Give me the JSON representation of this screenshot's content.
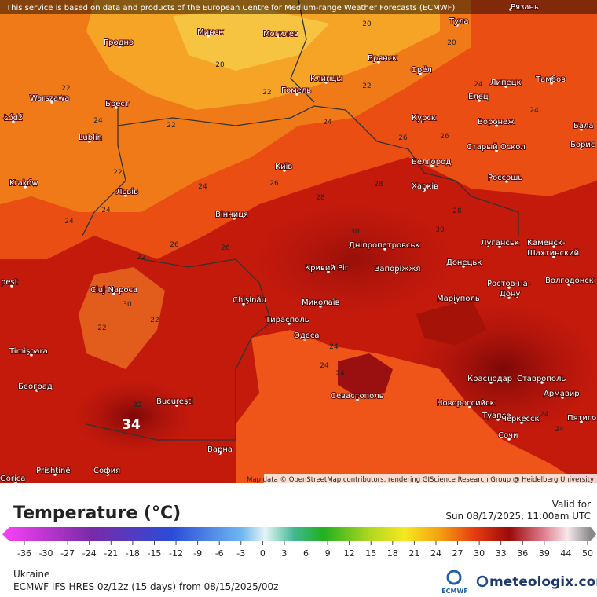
{
  "banner": "This service is based on data and products of the European Centre for Medium-range Weather Forecasts (ECMWF)",
  "attribution": "Map data © OpenStreetMap contributors, rendering GIScience Research Group @ Heidelberg University",
  "cities": [
    "Рязань",
    "Тула",
    "Минск",
    "Могилев",
    "Гродно",
    "Брянск",
    "Орёл",
    "Клинцы",
    "Гомель",
    "Липецк",
    "Тамбов",
    "Елец",
    "Warszawa",
    "Брест",
    "Łódź",
    "Lublin",
    "Курск",
    "Воронеж",
    "Старый Оскол",
    "Бала",
    "Борис",
    "Белгород",
    "Київ",
    "Kraków",
    "Харків",
    "Россошь",
    "Львів",
    "Вінниця",
    "Дніпропетровськ",
    "Луганськ",
    "Каменск-",
    "Шахтинский",
    "Кривий Ріг",
    "Запоріжжя",
    "Донецьк",
    "Ростов-на-",
    "Дону",
    "Волгодонск",
    "pest",
    "Chişinău",
    "Cluj-Napoca",
    "Миколаїв",
    "Маріуполь",
    "Тирасполь",
    "Одеса",
    "Timişoara",
    "Краснодар",
    "Ставрополь",
    "Армавир",
    "Београд",
    "Севастополь",
    "Новороссийск",
    "Bucureşti",
    "Туапсе",
    "Черкесск",
    "Пятиго",
    "Сочи",
    "Варна",
    "Prishtinë",
    "София",
    "Gorica"
  ],
  "contour_labels": [
    20,
    20,
    20,
    22,
    22,
    22,
    22,
    22,
    22,
    22,
    22,
    24,
    24,
    24,
    24,
    24,
    24,
    24,
    26,
    26,
    26,
    26,
    26,
    28,
    28,
    28,
    30,
    30,
    30,
    24,
    24,
    24,
    24,
    24,
    32
  ],
  "max_label": 34,
  "legend": {
    "title": "Temperature (°C)",
    "ticks": [
      -36,
      -30,
      -27,
      -24,
      -21,
      -18,
      -15,
      -12,
      -9,
      -6,
      -3,
      0,
      3,
      6,
      9,
      12,
      15,
      18,
      21,
      24,
      27,
      30,
      33,
      36,
      39,
      44,
      50
    ]
  },
  "valid_label": "Valid for",
  "valid_time": "Sun 08/17/2025, 11:00am UTC",
  "region": "Ukraine",
  "model": "ECMWF IFS HRES 0z/12z (15 days) from  08/15/2025/00z",
  "logo_ecmwf": "ECMWF",
  "logo_site": "meteologix.com"
}
